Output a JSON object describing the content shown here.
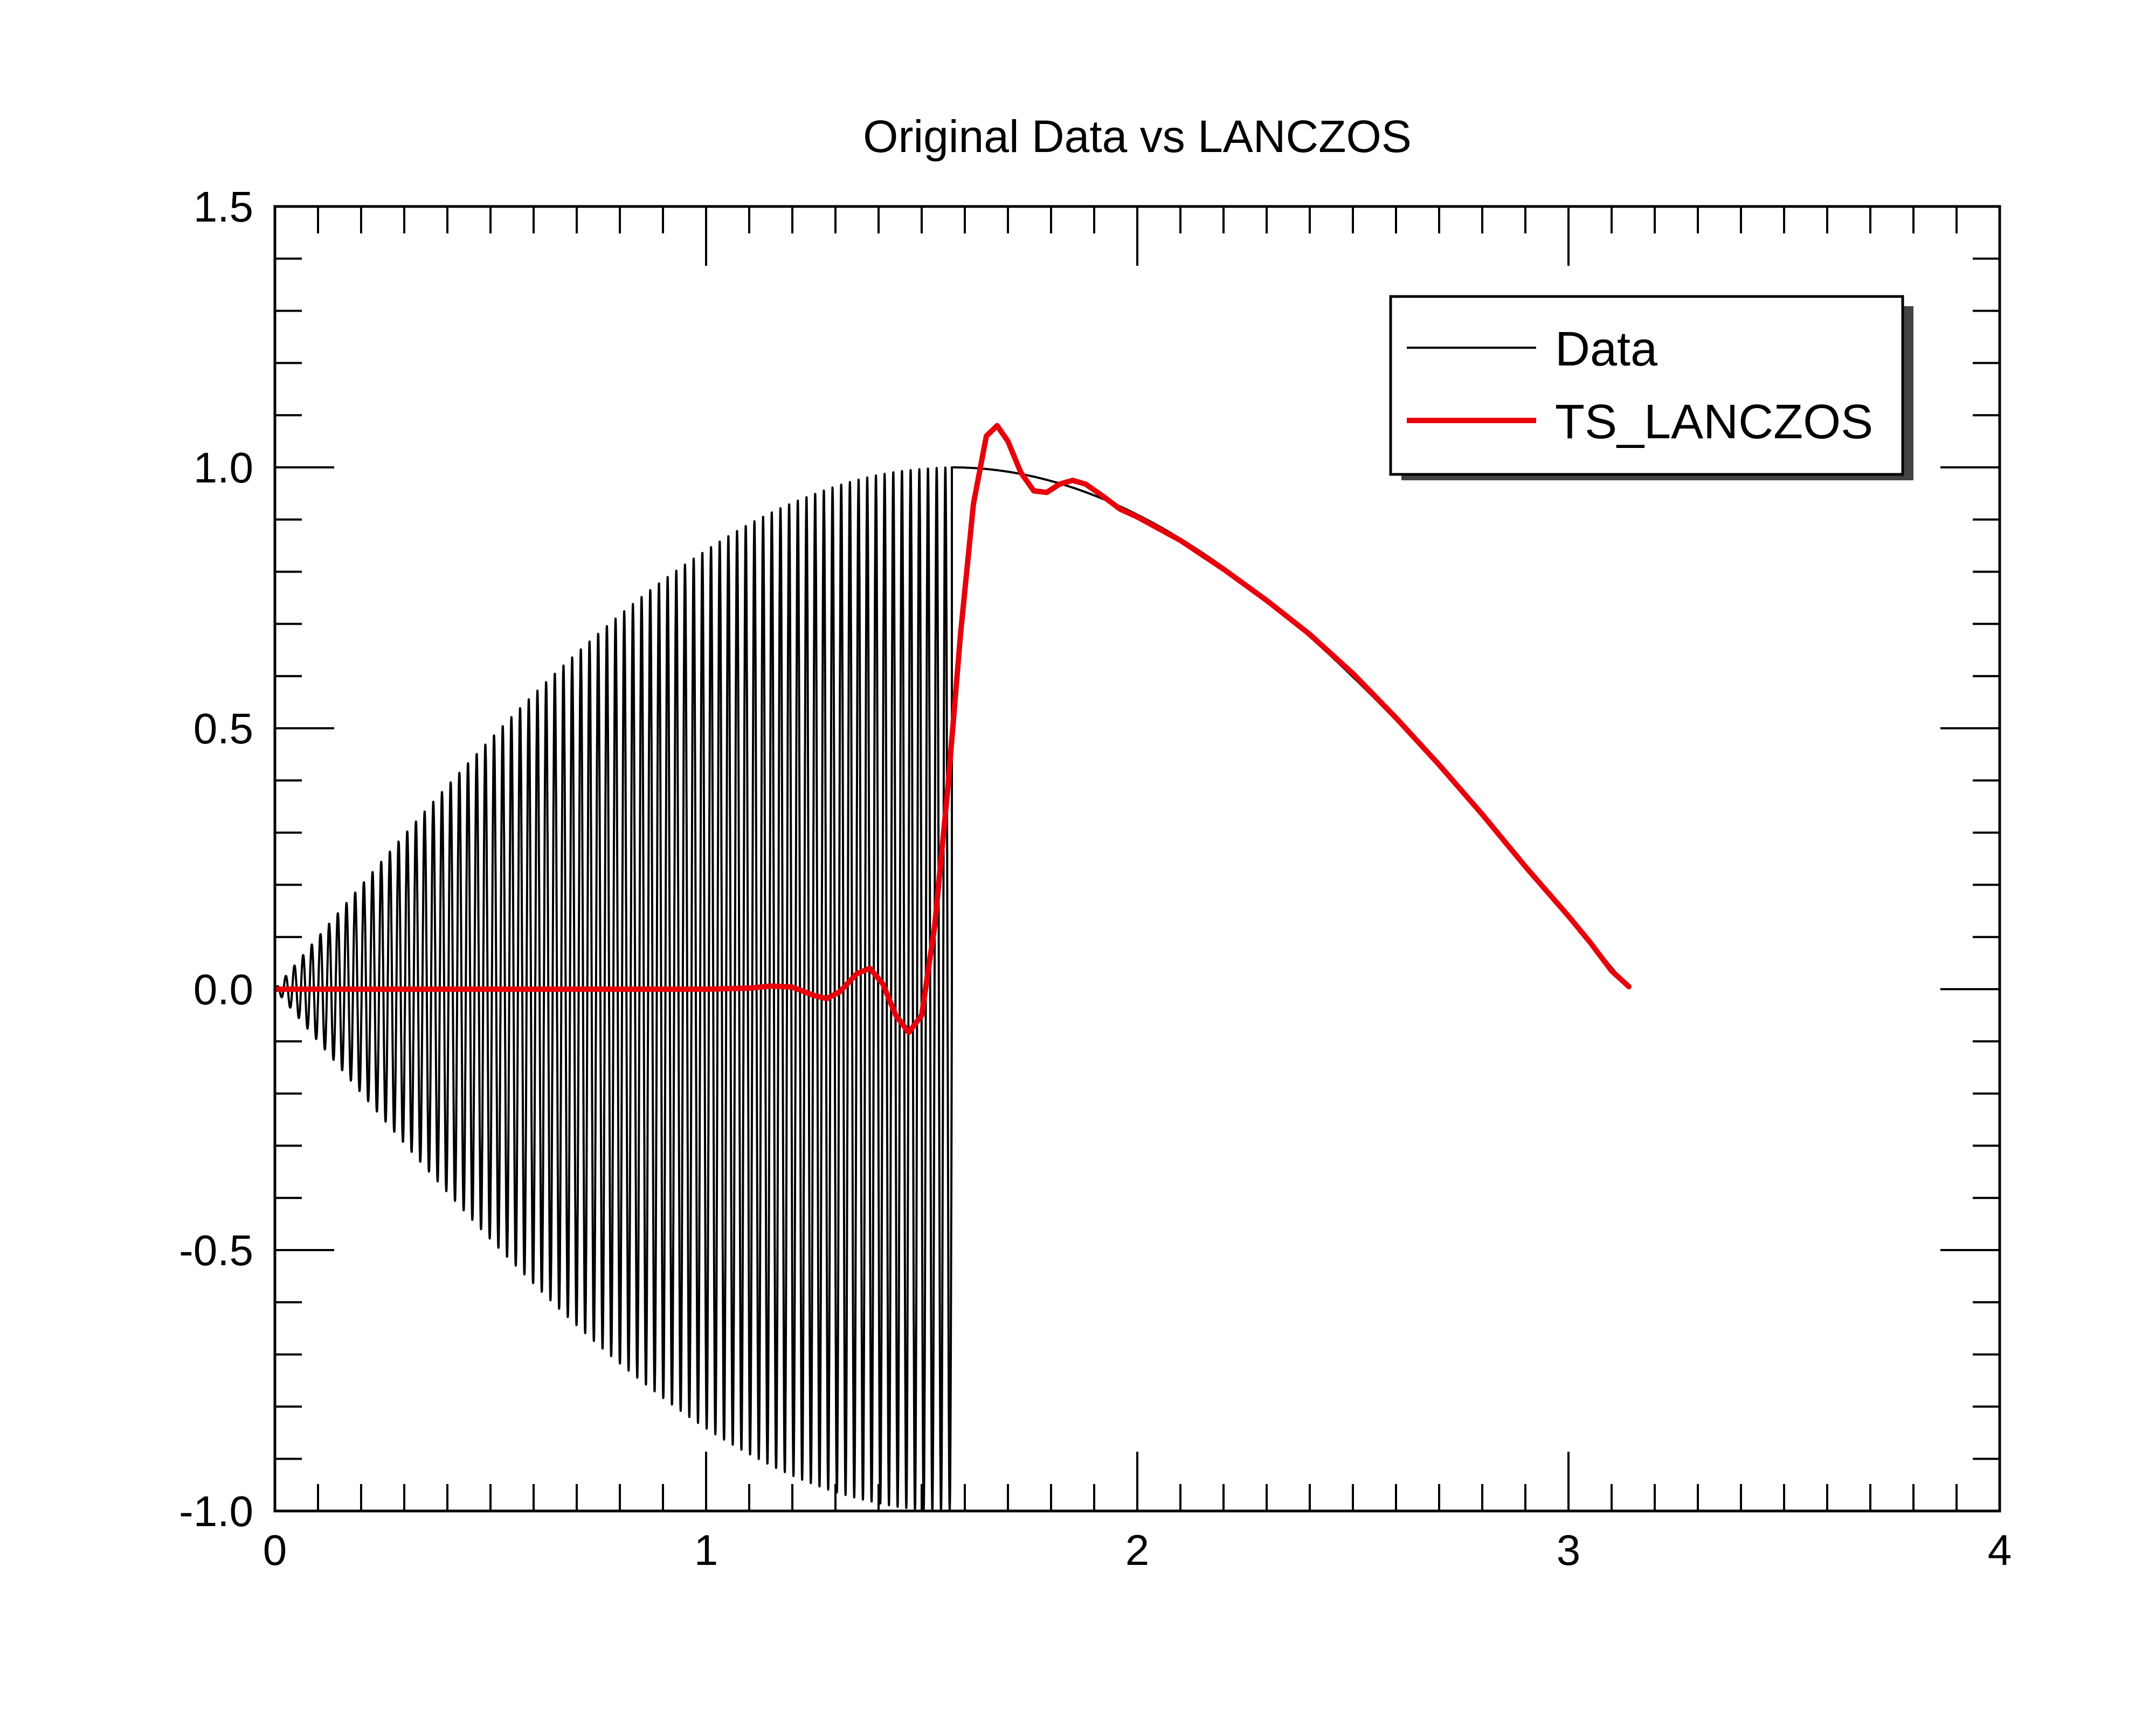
{
  "chart_data": {
    "type": "line",
    "title": "Original Data vs LANCZOS",
    "xlabel": "",
    "ylabel": "",
    "xlim": [
      0,
      4
    ],
    "ylim": [
      -1.0,
      1.5
    ],
    "x_ticks": [
      "0",
      "1",
      "2",
      "3",
      "4"
    ],
    "y_ticks": [
      "-1.0",
      "-0.5",
      "0.0",
      "0.5",
      "1.0",
      "1.5"
    ],
    "grid": false,
    "legend_position": "top-right",
    "series": [
      {
        "name": "Data",
        "color": "#000000",
        "description_curve": "oscillating",
        "envelope": "sin",
        "x_range": [
          0,
          3.14
        ],
        "oscillation_end": 1.57,
        "cycles": 78
      },
      {
        "name": "TS_LANCZOS",
        "color": "#e8000b",
        "points": [
          [
            0.0,
            0.0
          ],
          [
            0.5,
            0.0
          ],
          [
            1.0,
            0.0
          ],
          [
            1.1,
            0.002
          ],
          [
            1.15,
            0.006
          ],
          [
            1.2,
            0.004
          ],
          [
            1.25,
            -0.012
          ],
          [
            1.28,
            -0.018
          ],
          [
            1.31,
            -0.005
          ],
          [
            1.35,
            0.03
          ],
          [
            1.38,
            0.04
          ],
          [
            1.41,
            0.01
          ],
          [
            1.44,
            -0.05
          ],
          [
            1.47,
            -0.083
          ],
          [
            1.5,
            -0.05
          ],
          [
            1.53,
            0.12
          ],
          [
            1.56,
            0.38
          ],
          [
            1.59,
            0.68
          ],
          [
            1.62,
            0.93
          ],
          [
            1.65,
            1.06
          ],
          [
            1.675,
            1.08
          ],
          [
            1.7,
            1.05
          ],
          [
            1.73,
            0.99
          ],
          [
            1.76,
            0.955
          ],
          [
            1.79,
            0.952
          ],
          [
            1.82,
            0.968
          ],
          [
            1.85,
            0.975
          ],
          [
            1.88,
            0.968
          ],
          [
            1.92,
            0.945
          ],
          [
            1.96,
            0.92
          ],
          [
            2.0,
            0.905
          ],
          [
            2.1,
            0.86
          ],
          [
            2.2,
            0.805
          ],
          [
            2.3,
            0.745
          ],
          [
            2.4,
            0.68
          ],
          [
            2.5,
            0.605
          ],
          [
            2.6,
            0.52
          ],
          [
            2.7,
            0.43
          ],
          [
            2.8,
            0.335
          ],
          [
            2.9,
            0.235
          ],
          [
            3.0,
            0.14
          ],
          [
            3.05,
            0.09
          ],
          [
            3.1,
            0.035
          ],
          [
            3.14,
            0.005
          ]
        ]
      }
    ]
  }
}
